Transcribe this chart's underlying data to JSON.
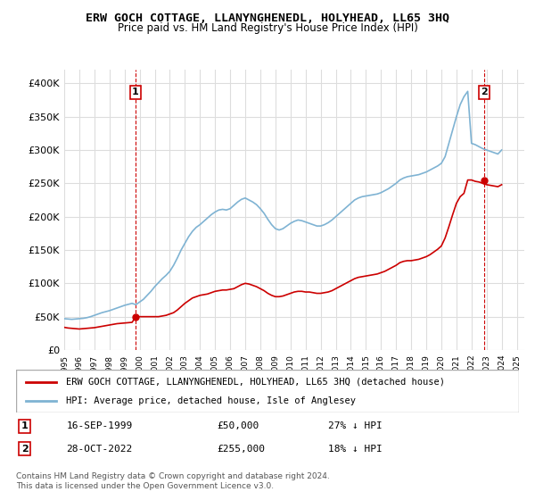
{
  "title": "ERW GOCH COTTAGE, LLANYNGHENEDL, HOLYHEAD, LL65 3HQ",
  "subtitle": "Price paid vs. HM Land Registry's House Price Index (HPI)",
  "ylabel_ticks": [
    "£0",
    "£50K",
    "£100K",
    "£150K",
    "£200K",
    "£250K",
    "£300K",
    "£350K",
    "£400K"
  ],
  "ytick_values": [
    0,
    50000,
    100000,
    150000,
    200000,
    250000,
    300000,
    350000,
    400000
  ],
  "ylim": [
    0,
    420000
  ],
  "xlim_start": 1995.0,
  "xlim_end": 2025.5,
  "xtick_labels": [
    "1995",
    "1996",
    "1997",
    "1998",
    "1999",
    "2000",
    "2001",
    "2002",
    "2003",
    "2004",
    "2005",
    "2006",
    "2007",
    "2008",
    "2009",
    "2010",
    "2011",
    "2012",
    "2013",
    "2014",
    "2015",
    "2016",
    "2017",
    "2018",
    "2019",
    "2020",
    "2021",
    "2022",
    "2023",
    "2024",
    "2025"
  ],
  "hpi_color": "#7fb3d3",
  "price_color": "#cc0000",
  "dashed_color": "#cc0000",
  "marker_color": "#cc0000",
  "grid_color": "#dddddd",
  "bg_color": "#ffffff",
  "legend_label_red": "ERW GOCH COTTAGE, LLANYNGHENEDL, HOLYHEAD, LL65 3HQ (detached house)",
  "legend_label_blue": "HPI: Average price, detached house, Isle of Anglesey",
  "transaction1_label": "1",
  "transaction1_date": "16-SEP-1999",
  "transaction1_price": "£50,000",
  "transaction1_info": "27% ↓ HPI",
  "transaction2_label": "2",
  "transaction2_date": "28-OCT-2022",
  "transaction2_price": "£255,000",
  "transaction2_info": "18% ↓ HPI",
  "footnote": "Contains HM Land Registry data © Crown copyright and database right 2024.\nThis data is licensed under the Open Government Licence v3.0.",
  "transaction1_x": 1999.71,
  "transaction1_y": 50000,
  "transaction2_x": 2022.83,
  "transaction2_y": 255000,
  "hpi_x": [
    1995.0,
    1995.25,
    1995.5,
    1995.75,
    1996.0,
    1996.25,
    1996.5,
    1996.75,
    1997.0,
    1997.25,
    1997.5,
    1997.75,
    1998.0,
    1998.25,
    1998.5,
    1998.75,
    1999.0,
    1999.25,
    1999.5,
    1999.75,
    2000.0,
    2000.25,
    2000.5,
    2000.75,
    2001.0,
    2001.25,
    2001.5,
    2001.75,
    2002.0,
    2002.25,
    2002.5,
    2002.75,
    2003.0,
    2003.25,
    2003.5,
    2003.75,
    2004.0,
    2004.25,
    2004.5,
    2004.75,
    2005.0,
    2005.25,
    2005.5,
    2005.75,
    2006.0,
    2006.25,
    2006.5,
    2006.75,
    2007.0,
    2007.25,
    2007.5,
    2007.75,
    2008.0,
    2008.25,
    2008.5,
    2008.75,
    2009.0,
    2009.25,
    2009.5,
    2009.75,
    2010.0,
    2010.25,
    2010.5,
    2010.75,
    2011.0,
    2011.25,
    2011.5,
    2011.75,
    2012.0,
    2012.25,
    2012.5,
    2012.75,
    2013.0,
    2013.25,
    2013.5,
    2013.75,
    2014.0,
    2014.25,
    2014.5,
    2014.75,
    2015.0,
    2015.25,
    2015.5,
    2015.75,
    2016.0,
    2016.25,
    2016.5,
    2016.75,
    2017.0,
    2017.25,
    2017.5,
    2017.75,
    2018.0,
    2018.25,
    2018.5,
    2018.75,
    2019.0,
    2019.25,
    2019.5,
    2019.75,
    2020.0,
    2020.25,
    2020.5,
    2020.75,
    2021.0,
    2021.25,
    2021.5,
    2021.75,
    2022.0,
    2022.25,
    2022.5,
    2022.75,
    2023.0,
    2023.25,
    2023.5,
    2023.75,
    2024.0
  ],
  "hpi_y": [
    47000,
    46500,
    46000,
    46500,
    47000,
    47500,
    48500,
    50000,
    52000,
    54000,
    56000,
    57500,
    59000,
    61000,
    63000,
    65000,
    67000,
    68500,
    70000,
    68000,
    72000,
    76000,
    82000,
    88000,
    95000,
    101000,
    107000,
    112000,
    118000,
    127000,
    138000,
    150000,
    160000,
    170000,
    178000,
    184000,
    188000,
    193000,
    198000,
    203000,
    207000,
    210000,
    211000,
    210000,
    212000,
    217000,
    222000,
    226000,
    228000,
    225000,
    222000,
    218000,
    212000,
    205000,
    196000,
    188000,
    182000,
    180000,
    182000,
    186000,
    190000,
    193000,
    195000,
    194000,
    192000,
    190000,
    188000,
    186000,
    186000,
    188000,
    191000,
    195000,
    200000,
    205000,
    210000,
    215000,
    220000,
    225000,
    228000,
    230000,
    231000,
    232000,
    233000,
    234000,
    236000,
    239000,
    242000,
    246000,
    250000,
    255000,
    258000,
    260000,
    261000,
    262000,
    263000,
    265000,
    267000,
    270000,
    273000,
    276000,
    280000,
    290000,
    310000,
    330000,
    350000,
    368000,
    380000,
    388000,
    310000,
    308000,
    305000,
    302000,
    300000,
    298000,
    296000,
    294000,
    300000
  ],
  "price_x": [
    1995.0,
    1995.25,
    1995.5,
    1995.75,
    1996.0,
    1996.25,
    1996.5,
    1996.75,
    1997.0,
    1997.25,
    1997.5,
    1997.75,
    1998.0,
    1998.25,
    1998.5,
    1998.75,
    1999.0,
    1999.25,
    1999.5,
    1999.75,
    2000.0,
    2000.25,
    2000.5,
    2000.75,
    2001.0,
    2001.25,
    2001.5,
    2001.75,
    2002.0,
    2002.25,
    2002.5,
    2002.75,
    2003.0,
    2003.25,
    2003.5,
    2003.75,
    2004.0,
    2004.25,
    2004.5,
    2004.75,
    2005.0,
    2005.25,
    2005.5,
    2005.75,
    2006.0,
    2006.25,
    2006.5,
    2006.75,
    2007.0,
    2007.25,
    2007.5,
    2007.75,
    2008.0,
    2008.25,
    2008.5,
    2008.75,
    2009.0,
    2009.25,
    2009.5,
    2009.75,
    2010.0,
    2010.25,
    2010.5,
    2010.75,
    2011.0,
    2011.25,
    2011.5,
    2011.75,
    2012.0,
    2012.25,
    2012.5,
    2012.75,
    2013.0,
    2013.25,
    2013.5,
    2013.75,
    2014.0,
    2014.25,
    2014.5,
    2014.75,
    2015.0,
    2015.25,
    2015.5,
    2015.75,
    2016.0,
    2016.25,
    2016.5,
    2016.75,
    2017.0,
    2017.25,
    2017.5,
    2017.75,
    2018.0,
    2018.25,
    2018.5,
    2018.75,
    2019.0,
    2019.25,
    2019.5,
    2019.75,
    2020.0,
    2020.25,
    2020.5,
    2020.75,
    2021.0,
    2021.25,
    2021.5,
    2021.75,
    2022.0,
    2022.25,
    2022.5,
    2022.75,
    2023.0,
    2023.25,
    2023.5,
    2023.75,
    2024.0
  ],
  "price_y": [
    34000,
    33000,
    32500,
    32000,
    31500,
    32000,
    32500,
    33000,
    33500,
    34500,
    35500,
    36500,
    37500,
    38500,
    39500,
    40000,
    40500,
    41000,
    41500,
    50000,
    50000,
    50000,
    50000,
    50000,
    50000,
    50000,
    51000,
    52000,
    54000,
    56000,
    60000,
    65000,
    70000,
    74000,
    78000,
    80000,
    82000,
    83000,
    84000,
    86000,
    88000,
    89000,
    90000,
    90000,
    91000,
    92000,
    95000,
    98000,
    100000,
    99000,
    97000,
    95000,
    92000,
    89000,
    85000,
    82000,
    80000,
    80000,
    81000,
    83000,
    85000,
    87000,
    88000,
    88000,
    87000,
    87000,
    86000,
    85000,
    85000,
    86000,
    87000,
    89000,
    92000,
    95000,
    98000,
    101000,
    104000,
    107000,
    109000,
    110000,
    111000,
    112000,
    113000,
    114000,
    116000,
    118000,
    121000,
    124000,
    127000,
    131000,
    133000,
    134000,
    134000,
    135000,
    136000,
    138000,
    140000,
    143000,
    147000,
    151000,
    156000,
    168000,
    185000,
    203000,
    220000,
    230000,
    235000,
    255000,
    255000,
    253000,
    252000,
    250000,
    248000,
    247000,
    246000,
    245000,
    248000
  ]
}
